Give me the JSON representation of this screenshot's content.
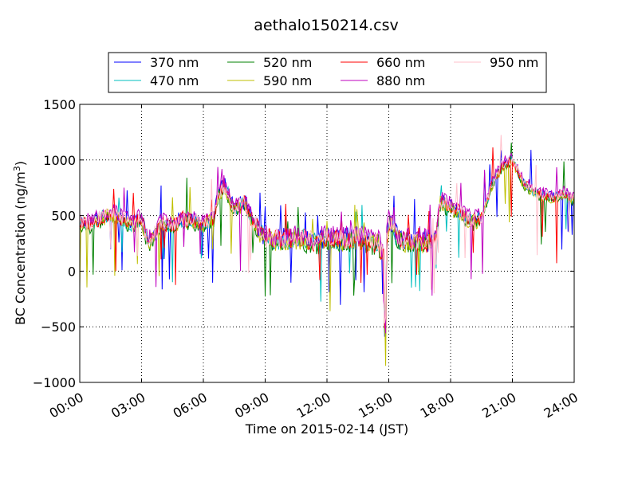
{
  "chart_data": {
    "type": "line",
    "title": "aethalo150214.csv",
    "xlabel": "Time on 2015-02-14 (JST)",
    "ylabel": {
      "prefix": "BC Concentration (ng/m",
      "superscript": "3",
      "suffix": ")"
    },
    "xlim": [
      0,
      24
    ],
    "ylim": [
      -1000,
      1500
    ],
    "grid": true,
    "grid_style": "dotted",
    "legend_position": "top",
    "x_ticks": [
      0,
      3,
      6,
      9,
      12,
      15,
      18,
      21,
      24
    ],
    "x_tick_labels": [
      "00:00",
      "03:00",
      "06:00",
      "09:00",
      "12:00",
      "15:00",
      "18:00",
      "21:00",
      "24:00"
    ],
    "y_ticks": [
      -1000,
      -500,
      0,
      500,
      1000,
      1500
    ],
    "y_tick_labels": [
      "−1000",
      "−500",
      "0",
      "500",
      "1000",
      "1500"
    ],
    "anchors": {
      "x": [
        0,
        0.5,
        1,
        1.5,
        2,
        2.5,
        3,
        3.3,
        3.5,
        4,
        4.5,
        5,
        5.5,
        6,
        6.5,
        6.7,
        7,
        7.5,
        8,
        8.5,
        9,
        9.5,
        10,
        10.5,
        11,
        11.5,
        12,
        12.5,
        13,
        13.5,
        14,
        14.5,
        14.8,
        15,
        15.5,
        16,
        16.5,
        17,
        17.3,
        17.5,
        18,
        18.5,
        19,
        19.5,
        20,
        20.5,
        21,
        21.5,
        22,
        22.5,
        23,
        23.5,
        24
      ],
      "y": [
        450,
        420,
        480,
        520,
        470,
        430,
        480,
        250,
        300,
        430,
        420,
        470,
        450,
        420,
        480,
        680,
        780,
        560,
        620,
        420,
        300,
        280,
        290,
        300,
        280,
        260,
        300,
        280,
        290,
        300,
        270,
        250,
        100,
        450,
        280,
        270,
        280,
        250,
        300,
        620,
        580,
        520,
        450,
        480,
        780,
        950,
        1000,
        800,
        720,
        680,
        660,
        700,
        640
      ]
    },
    "series": [
      {
        "name": "370 nm",
        "color": "#0000ff",
        "offset": 10,
        "seed": 11
      },
      {
        "name": "470 nm",
        "color": "#00bfbf",
        "offset": -5,
        "seed": 23
      },
      {
        "name": "520 nm",
        "color": "#008000",
        "offset": -25,
        "seed": 37
      },
      {
        "name": "590 nm",
        "color": "#bfbf00",
        "offset": -15,
        "seed": 41
      },
      {
        "name": "660 nm",
        "color": "#ff0000",
        "offset": 0,
        "seed": 53
      },
      {
        "name": "880 nm",
        "color": "#bf00bf",
        "offset": 30,
        "seed": 67
      },
      {
        "name": "950 nm",
        "color": "#ffc0cb",
        "offset": 5,
        "seed": 79
      }
    ]
  }
}
